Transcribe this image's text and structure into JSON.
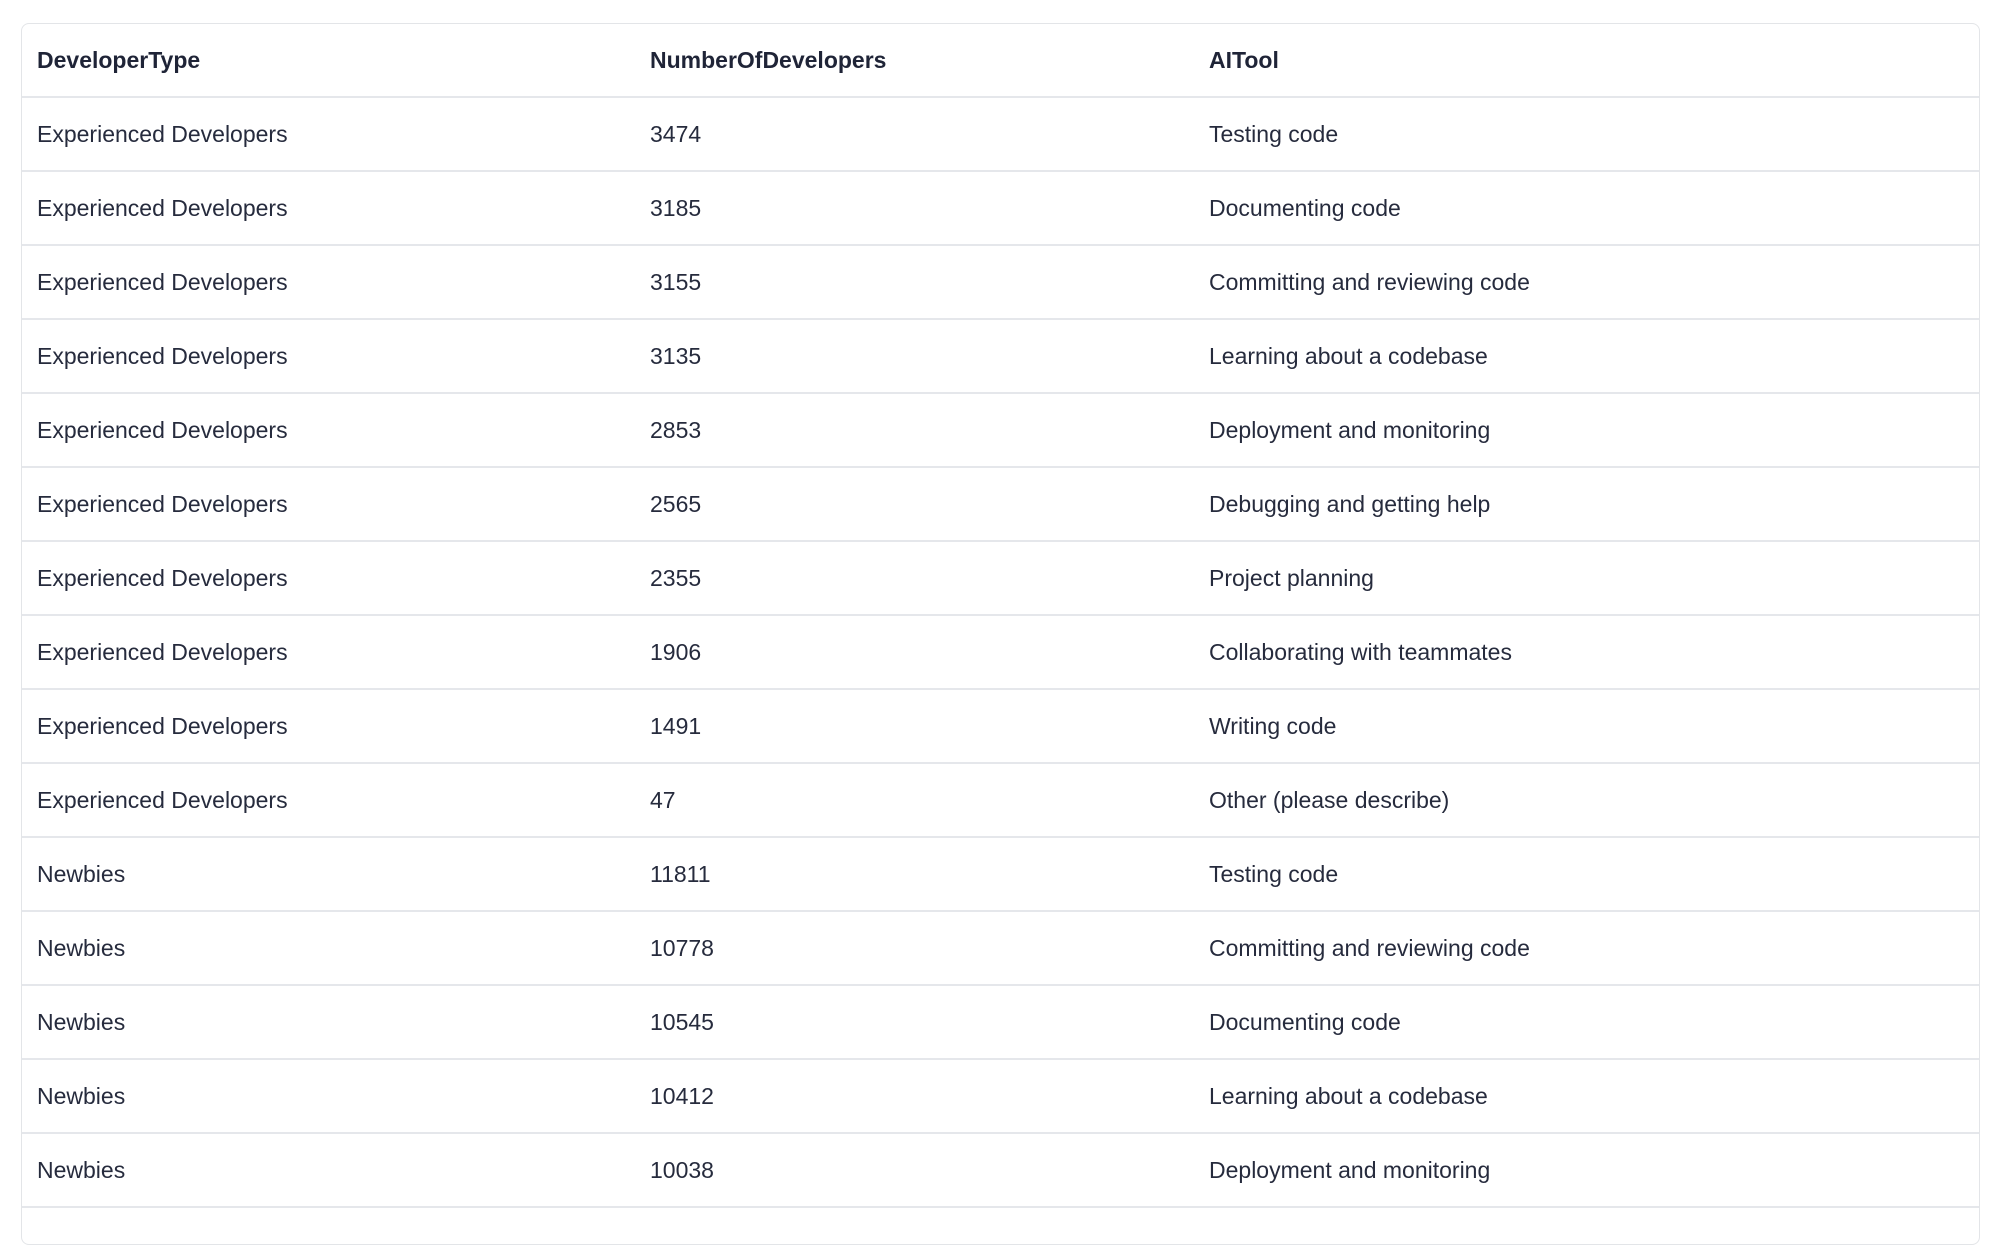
{
  "table": {
    "columns": [
      "DeveloperType",
      "NumberOfDevelopers",
      "AITool"
    ],
    "rows": [
      [
        "Experienced Developers",
        "3474",
        "Testing code"
      ],
      [
        "Experienced Developers",
        "3185",
        "Documenting code"
      ],
      [
        "Experienced Developers",
        "3155",
        "Committing and reviewing code"
      ],
      [
        "Experienced Developers",
        "3135",
        "Learning about a codebase"
      ],
      [
        "Experienced Developers",
        "2853",
        "Deployment and monitoring"
      ],
      [
        "Experienced Developers",
        "2565",
        "Debugging and getting help"
      ],
      [
        "Experienced Developers",
        "2355",
        "Project planning"
      ],
      [
        "Experienced Developers",
        "1906",
        "Collaborating with teammates"
      ],
      [
        "Experienced Developers",
        "1491",
        "Writing code"
      ],
      [
        "Experienced Developers",
        "47",
        "Other (please describe)"
      ],
      [
        "Newbies",
        "11811",
        "Testing code"
      ],
      [
        "Newbies",
        "10778",
        "Committing and reviewing code"
      ],
      [
        "Newbies",
        "10545",
        "Documenting code"
      ],
      [
        "Newbies",
        "10412",
        "Learning about a codebase"
      ],
      [
        "Newbies",
        "10038",
        "Deployment and monitoring"
      ]
    ]
  }
}
